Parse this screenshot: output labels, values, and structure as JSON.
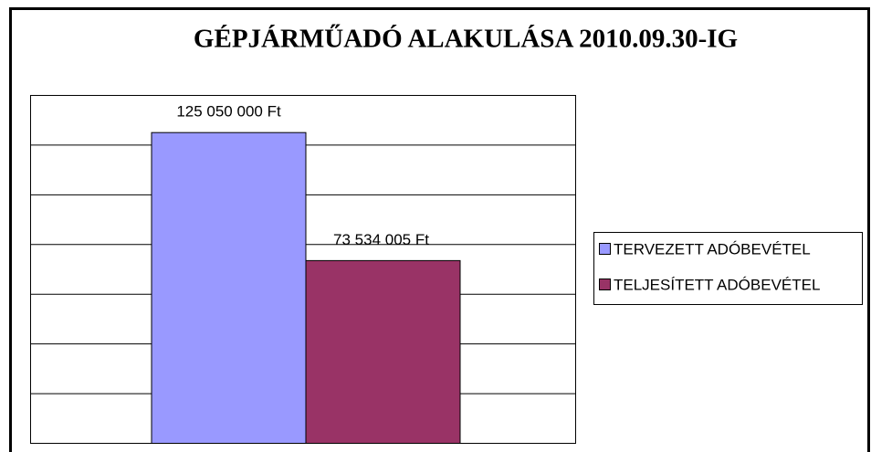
{
  "chart_data": {
    "type": "bar",
    "title": "GÉPJÁRMŰADÓ ALAKULÁSA 2010.09.30-IG",
    "categories": [
      null
    ],
    "series": [
      {
        "name": "TERVEZETT ADÓBEVÉTEL",
        "color": "#9999ff",
        "values": [
          125050000
        ],
        "value_labels": [
          "125 050 000 Ft"
        ]
      },
      {
        "name": "TELJESÍTETT ADÓBEVÉTEL",
        "color": "#993366",
        "values": [
          73534005
        ],
        "value_labels": [
          "73 534 005 Ft"
        ]
      }
    ],
    "ylim": [
      0,
      140000000
    ],
    "yticks": [
      0,
      20000000,
      40000000,
      60000000,
      80000000,
      100000000,
      120000000,
      140000000
    ],
    "grid": true,
    "legend": "right"
  }
}
